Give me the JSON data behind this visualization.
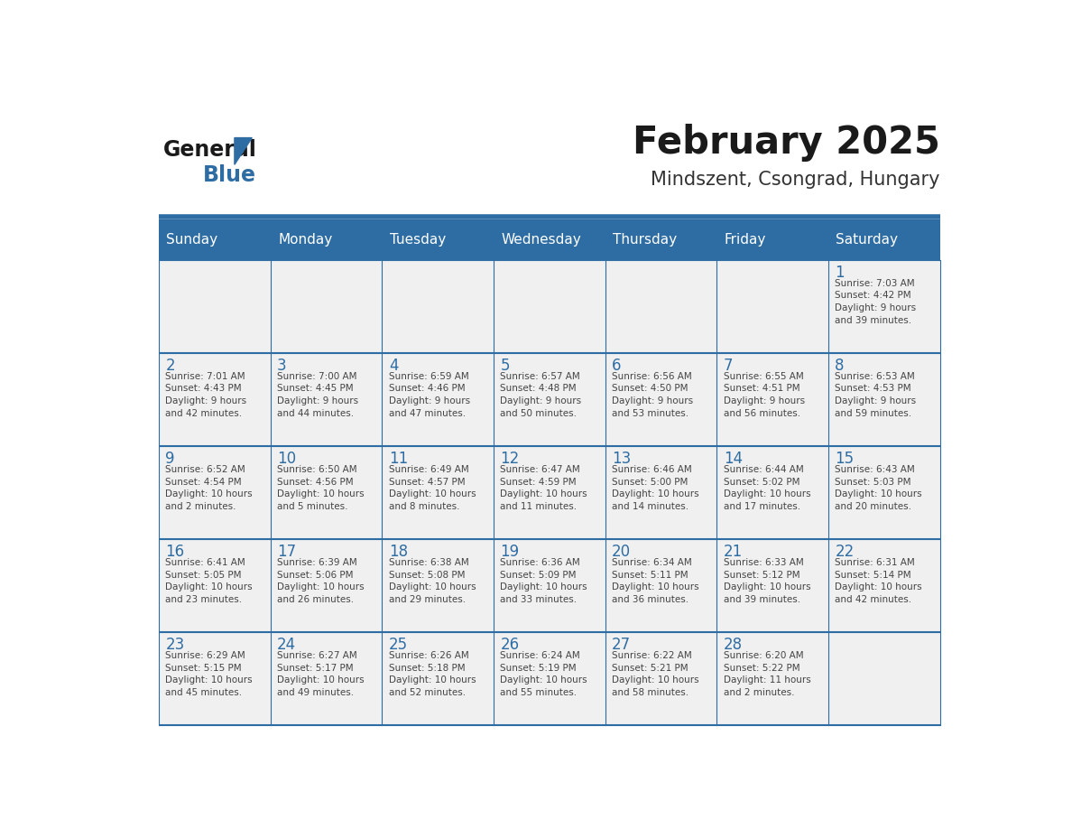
{
  "title": "February 2025",
  "subtitle": "Mindszent, Csongrad, Hungary",
  "days_of_week": [
    "Sunday",
    "Monday",
    "Tuesday",
    "Wednesday",
    "Thursday",
    "Friday",
    "Saturday"
  ],
  "header_bg": "#2E6DA4",
  "header_text": "#FFFFFF",
  "cell_bg_light": "#F0F0F0",
  "divider_color": "#2E6DA4",
  "day_number_color": "#2E6DA4",
  "cell_text_color": "#444444",
  "title_color": "#1a1a1a",
  "subtitle_color": "#333333",
  "logo_general_color": "#1a1a1a",
  "logo_blue_color": "#2E6DA4",
  "week_rows": [
    {
      "days": [
        {
          "day": null,
          "info": null
        },
        {
          "day": null,
          "info": null
        },
        {
          "day": null,
          "info": null
        },
        {
          "day": null,
          "info": null
        },
        {
          "day": null,
          "info": null
        },
        {
          "day": null,
          "info": null
        },
        {
          "day": 1,
          "info": "Sunrise: 7:03 AM\nSunset: 4:42 PM\nDaylight: 9 hours\nand 39 minutes."
        }
      ]
    },
    {
      "days": [
        {
          "day": 2,
          "info": "Sunrise: 7:01 AM\nSunset: 4:43 PM\nDaylight: 9 hours\nand 42 minutes."
        },
        {
          "day": 3,
          "info": "Sunrise: 7:00 AM\nSunset: 4:45 PM\nDaylight: 9 hours\nand 44 minutes."
        },
        {
          "day": 4,
          "info": "Sunrise: 6:59 AM\nSunset: 4:46 PM\nDaylight: 9 hours\nand 47 minutes."
        },
        {
          "day": 5,
          "info": "Sunrise: 6:57 AM\nSunset: 4:48 PM\nDaylight: 9 hours\nand 50 minutes."
        },
        {
          "day": 6,
          "info": "Sunrise: 6:56 AM\nSunset: 4:50 PM\nDaylight: 9 hours\nand 53 minutes."
        },
        {
          "day": 7,
          "info": "Sunrise: 6:55 AM\nSunset: 4:51 PM\nDaylight: 9 hours\nand 56 minutes."
        },
        {
          "day": 8,
          "info": "Sunrise: 6:53 AM\nSunset: 4:53 PM\nDaylight: 9 hours\nand 59 minutes."
        }
      ]
    },
    {
      "days": [
        {
          "day": 9,
          "info": "Sunrise: 6:52 AM\nSunset: 4:54 PM\nDaylight: 10 hours\nand 2 minutes."
        },
        {
          "day": 10,
          "info": "Sunrise: 6:50 AM\nSunset: 4:56 PM\nDaylight: 10 hours\nand 5 minutes."
        },
        {
          "day": 11,
          "info": "Sunrise: 6:49 AM\nSunset: 4:57 PM\nDaylight: 10 hours\nand 8 minutes."
        },
        {
          "day": 12,
          "info": "Sunrise: 6:47 AM\nSunset: 4:59 PM\nDaylight: 10 hours\nand 11 minutes."
        },
        {
          "day": 13,
          "info": "Sunrise: 6:46 AM\nSunset: 5:00 PM\nDaylight: 10 hours\nand 14 minutes."
        },
        {
          "day": 14,
          "info": "Sunrise: 6:44 AM\nSunset: 5:02 PM\nDaylight: 10 hours\nand 17 minutes."
        },
        {
          "day": 15,
          "info": "Sunrise: 6:43 AM\nSunset: 5:03 PM\nDaylight: 10 hours\nand 20 minutes."
        }
      ]
    },
    {
      "days": [
        {
          "day": 16,
          "info": "Sunrise: 6:41 AM\nSunset: 5:05 PM\nDaylight: 10 hours\nand 23 minutes."
        },
        {
          "day": 17,
          "info": "Sunrise: 6:39 AM\nSunset: 5:06 PM\nDaylight: 10 hours\nand 26 minutes."
        },
        {
          "day": 18,
          "info": "Sunrise: 6:38 AM\nSunset: 5:08 PM\nDaylight: 10 hours\nand 29 minutes."
        },
        {
          "day": 19,
          "info": "Sunrise: 6:36 AM\nSunset: 5:09 PM\nDaylight: 10 hours\nand 33 minutes."
        },
        {
          "day": 20,
          "info": "Sunrise: 6:34 AM\nSunset: 5:11 PM\nDaylight: 10 hours\nand 36 minutes."
        },
        {
          "day": 21,
          "info": "Sunrise: 6:33 AM\nSunset: 5:12 PM\nDaylight: 10 hours\nand 39 minutes."
        },
        {
          "day": 22,
          "info": "Sunrise: 6:31 AM\nSunset: 5:14 PM\nDaylight: 10 hours\nand 42 minutes."
        }
      ]
    },
    {
      "days": [
        {
          "day": 23,
          "info": "Sunrise: 6:29 AM\nSunset: 5:15 PM\nDaylight: 10 hours\nand 45 minutes."
        },
        {
          "day": 24,
          "info": "Sunrise: 6:27 AM\nSunset: 5:17 PM\nDaylight: 10 hours\nand 49 minutes."
        },
        {
          "day": 25,
          "info": "Sunrise: 6:26 AM\nSunset: 5:18 PM\nDaylight: 10 hours\nand 52 minutes."
        },
        {
          "day": 26,
          "info": "Sunrise: 6:24 AM\nSunset: 5:19 PM\nDaylight: 10 hours\nand 55 minutes."
        },
        {
          "day": 27,
          "info": "Sunrise: 6:22 AM\nSunset: 5:21 PM\nDaylight: 10 hours\nand 58 minutes."
        },
        {
          "day": 28,
          "info": "Sunrise: 6:20 AM\nSunset: 5:22 PM\nDaylight: 11 hours\nand 2 minutes."
        },
        {
          "day": null,
          "info": null
        }
      ]
    }
  ]
}
